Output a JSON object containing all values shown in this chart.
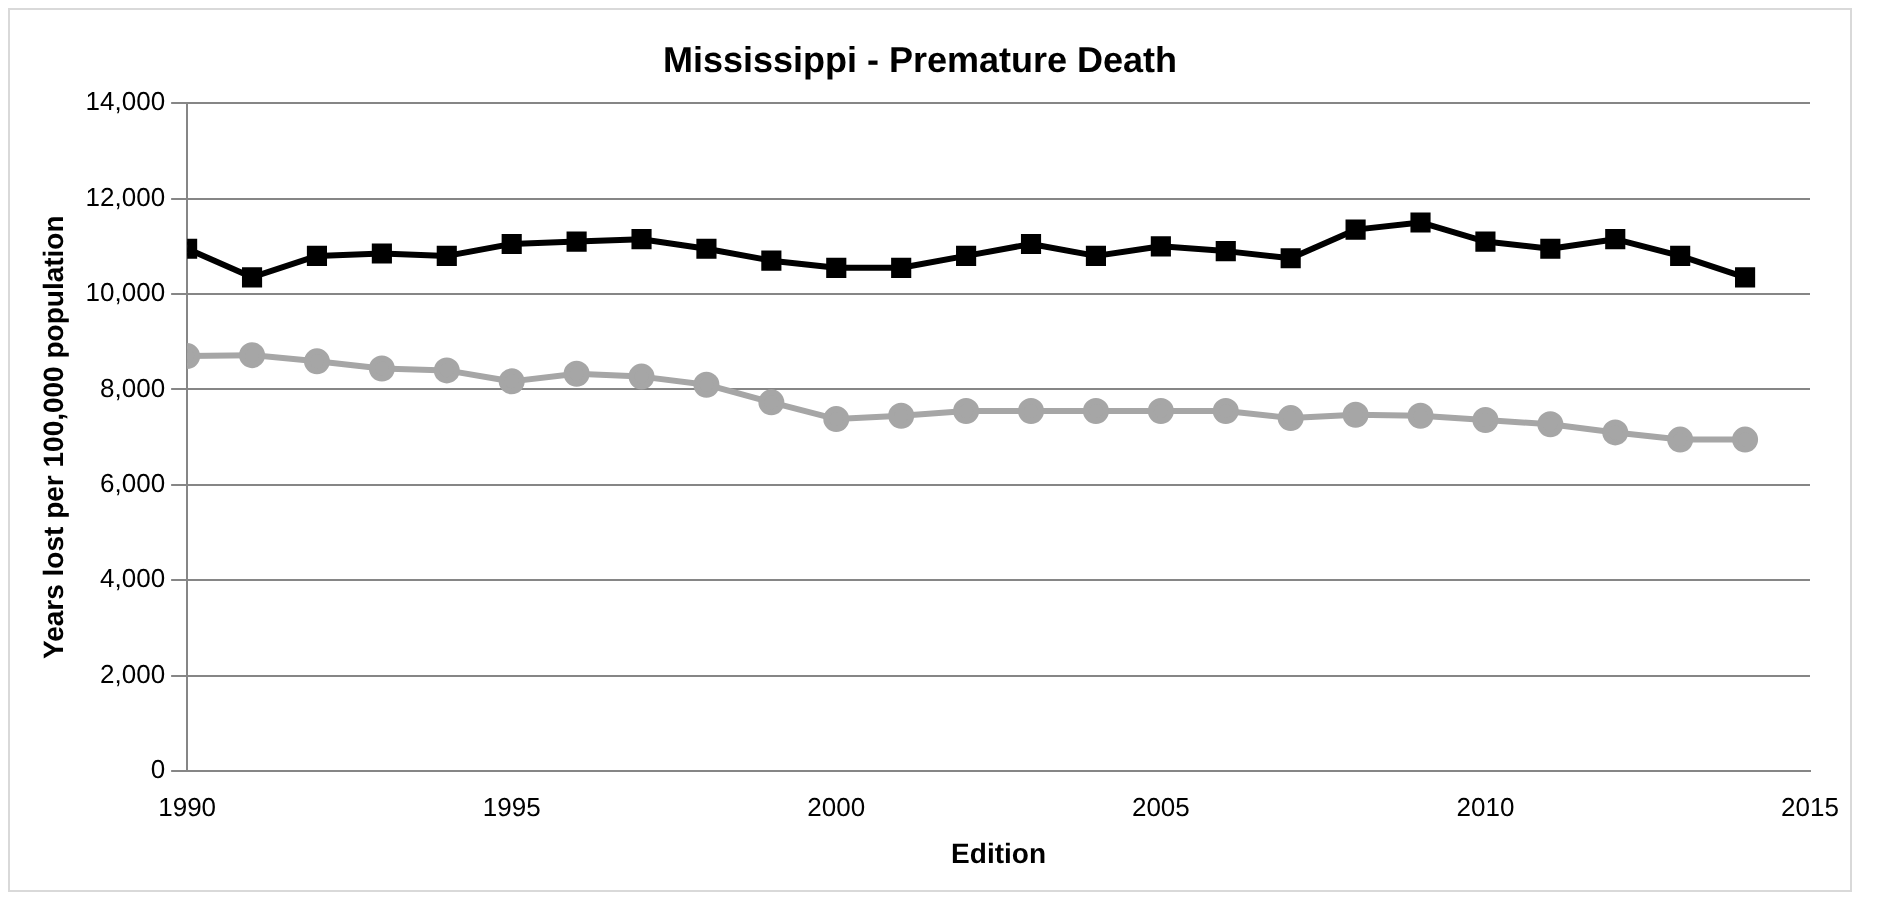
{
  "chart_data": {
    "type": "line",
    "title": "Mississippi - Premature Death",
    "xlabel": "Edition",
    "ylabel": "Years lost per 100,000 population",
    "x": [
      1990,
      1991,
      1992,
      1993,
      1994,
      1995,
      1996,
      1997,
      1998,
      1999,
      2000,
      2001,
      2002,
      2003,
      2004,
      2005,
      2006,
      2007,
      2008,
      2009,
      2010,
      2011,
      2012,
      2013,
      2014
    ],
    "series": [
      {
        "color": "#000000",
        "marker": "square",
        "values": [
          10950,
          10350,
          10800,
          10850,
          10800,
          11050,
          11100,
          11150,
          10950,
          10700,
          10550,
          10550,
          10800,
          11050,
          10800,
          11000,
          10900,
          10750,
          11350,
          11500,
          11100,
          10950,
          11150,
          10800,
          10350
        ]
      },
      {
        "color": "#a6a6a6",
        "marker": "circle",
        "values": [
          8700,
          8720,
          8590,
          8440,
          8400,
          8170,
          8330,
          8270,
          8100,
          7730,
          7380,
          7450,
          7550,
          7550,
          7550,
          7550,
          7550,
          7400,
          7470,
          7450,
          7360,
          7270,
          7100,
          6950,
          6950
        ]
      }
    ],
    "xlim": [
      1990,
      2015
    ],
    "xticks": [
      1990,
      1995,
      2000,
      2005,
      2010,
      2015
    ],
    "ylim": [
      0,
      14000
    ],
    "yticks": [
      0,
      {
        "value": 2000,
        "label": "2,000"
      },
      {
        "value": 4000,
        "label": "4,000"
      },
      {
        "value": 6000,
        "label": "6,000"
      },
      {
        "value": 8000,
        "label": "8,000"
      },
      {
        "value": 10000,
        "label": "10,000"
      },
      {
        "value": 12000,
        "label": "12,000"
      },
      {
        "value": 14000,
        "label": "14,000"
      }
    ],
    "grid": "y",
    "legend": false
  }
}
